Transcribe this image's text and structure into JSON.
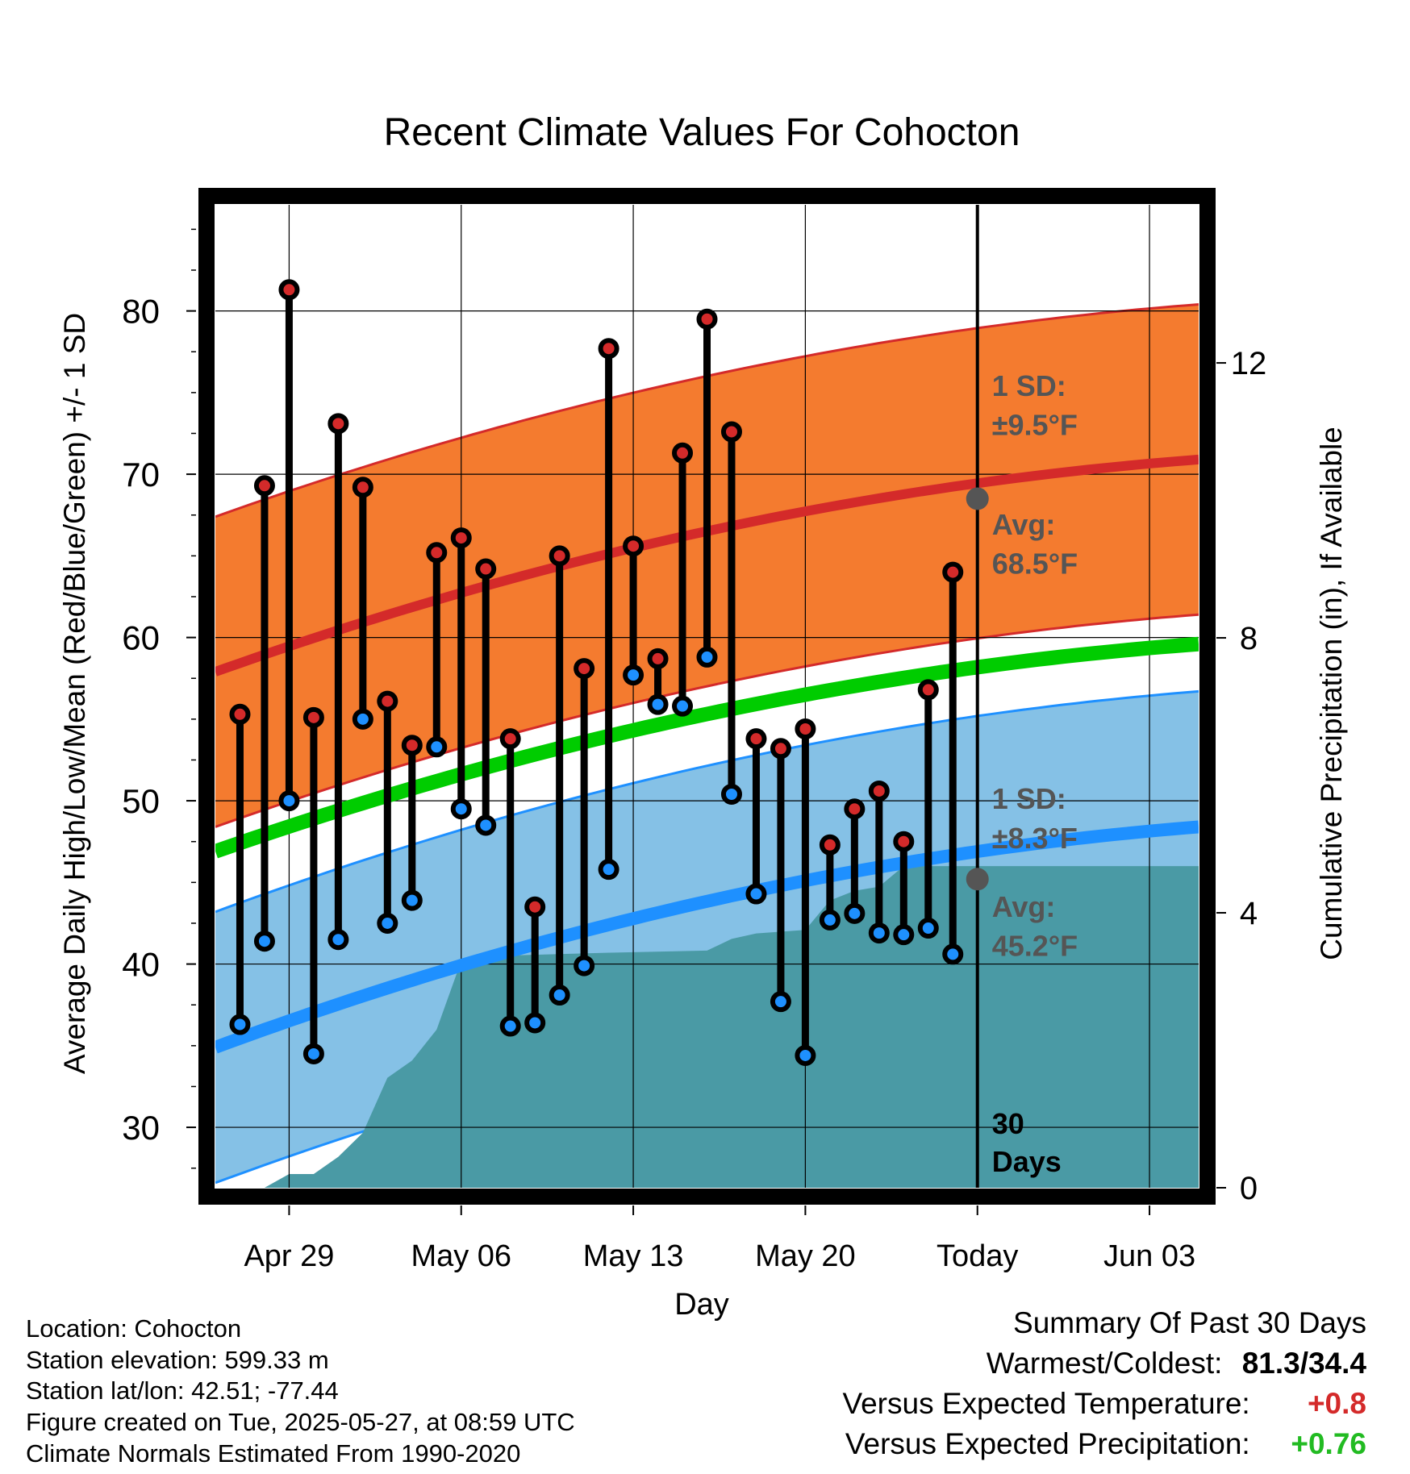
{
  "chart_data": {
    "type": "line",
    "title": "Recent Climate Values For Cohocton",
    "xlabel": "Day",
    "ylabel_left": "Average Daily High/Low/Mean (Red/Blue/Green) +/- 1 SD",
    "ylabel_right": "Cumulative Precipitation (in), If Available",
    "x_tick_labels": [
      "Apr 29",
      "May 06",
      "May 13",
      "May 20",
      "Today",
      "Jun 03"
    ],
    "x_tick_dates": [
      "2025-04-29",
      "2025-05-06",
      "2025-05-13",
      "2025-05-20",
      "2025-05-27",
      "2025-06-03"
    ],
    "x_range": [
      "2025-04-26",
      "2025-06-05"
    ],
    "today": "2025-05-27",
    "ylim": [
      26.3,
      86.5
    ],
    "y_ticks": [
      30,
      40,
      50,
      60,
      70,
      80
    ],
    "precip_ylim": [
      0,
      14.3
    ],
    "precip_ticks": [
      0,
      4,
      8,
      12
    ],
    "grid": true,
    "colors": {
      "high_band": "#f47b2f",
      "high_mean": "#d42a2a",
      "low_band": "#85c1e6",
      "low_mean": "#1e90ff",
      "mean": "#00cc00",
      "precip": "#4a9aa5",
      "high_dot": "#d42a2a",
      "low_dot": "#1e90ff"
    },
    "normals": {
      "high_mean_start": 57.9,
      "high_mean_end": 70.9,
      "high_sd": 9.5,
      "low_mean_start": 34.9,
      "low_mean_end": 48.4,
      "low_sd": 8.3,
      "mean_start": 46.9,
      "mean_end": 59.6
    },
    "daily": [
      {
        "date": "2025-04-27",
        "high": 55.3,
        "low": 36.3
      },
      {
        "date": "2025-04-28",
        "high": 69.3,
        "low": 41.4
      },
      {
        "date": "2025-04-29",
        "high": 81.3,
        "low": 50.0
      },
      {
        "date": "2025-04-30",
        "high": 55.1,
        "low": 34.5
      },
      {
        "date": "2025-05-01",
        "high": 73.1,
        "low": 41.5
      },
      {
        "date": "2025-05-02",
        "high": 69.2,
        "low": 55.0
      },
      {
        "date": "2025-05-03",
        "high": 56.1,
        "low": 42.5
      },
      {
        "date": "2025-05-04",
        "high": 53.4,
        "low": 43.9
      },
      {
        "date": "2025-05-05",
        "high": 65.2,
        "low": 53.3
      },
      {
        "date": "2025-05-06",
        "high": 66.1,
        "low": 49.5
      },
      {
        "date": "2025-05-07",
        "high": 64.2,
        "low": 48.5
      },
      {
        "date": "2025-05-08",
        "high": 53.8,
        "low": 36.2
      },
      {
        "date": "2025-05-09",
        "high": 43.5,
        "low": 36.4
      },
      {
        "date": "2025-05-10",
        "high": 65.0,
        "low": 38.1
      },
      {
        "date": "2025-05-11",
        "high": 58.1,
        "low": 39.9
      },
      {
        "date": "2025-05-12",
        "high": 77.7,
        "low": 45.8
      },
      {
        "date": "2025-05-13",
        "high": 65.6,
        "low": 57.7
      },
      {
        "date": "2025-05-14",
        "high": 58.7,
        "low": 55.9
      },
      {
        "date": "2025-05-15",
        "high": 71.3,
        "low": 55.8
      },
      {
        "date": "2025-05-16",
        "high": 79.5,
        "low": 58.8
      },
      {
        "date": "2025-05-17",
        "high": 72.6,
        "low": 50.4
      },
      {
        "date": "2025-05-18",
        "high": 53.8,
        "low": 44.3
      },
      {
        "date": "2025-05-19",
        "high": 53.2,
        "low": 37.7
      },
      {
        "date": "2025-05-20",
        "high": 54.4,
        "low": 34.4
      },
      {
        "date": "2025-05-21",
        "high": 47.3,
        "low": 42.7
      },
      {
        "date": "2025-05-22",
        "high": 49.5,
        "low": 43.1
      },
      {
        "date": "2025-05-23",
        "high": 50.6,
        "low": 41.9
      },
      {
        "date": "2025-05-24",
        "high": 47.5,
        "low": 41.8
      },
      {
        "date": "2025-05-25",
        "high": 56.8,
        "low": 42.2
      },
      {
        "date": "2025-05-26",
        "high": 64.0,
        "low": 40.6
      }
    ],
    "precip_cumulative": [
      {
        "date": "2025-04-26",
        "value": 0
      },
      {
        "date": "2025-04-28",
        "value": 0
      },
      {
        "date": "2025-04-29",
        "value": 0.2
      },
      {
        "date": "2025-04-30",
        "value": 0.2
      },
      {
        "date": "2025-05-01",
        "value": 0.45
      },
      {
        "date": "2025-05-02",
        "value": 0.8
      },
      {
        "date": "2025-05-03",
        "value": 1.6
      },
      {
        "date": "2025-05-04",
        "value": 1.85
      },
      {
        "date": "2025-05-05",
        "value": 2.3
      },
      {
        "date": "2025-05-06",
        "value": 3.3
      },
      {
        "date": "2025-05-07",
        "value": 3.35
      },
      {
        "date": "2025-05-08",
        "value": 3.38
      },
      {
        "date": "2025-05-12",
        "value": 3.42
      },
      {
        "date": "2025-05-16",
        "value": 3.45
      },
      {
        "date": "2025-05-17",
        "value": 3.62
      },
      {
        "date": "2025-05-18",
        "value": 3.7
      },
      {
        "date": "2025-05-20",
        "value": 3.75
      },
      {
        "date": "2025-05-21",
        "value": 4.18
      },
      {
        "date": "2025-05-22",
        "value": 4.32
      },
      {
        "date": "2025-05-23",
        "value": 4.38
      },
      {
        "date": "2025-05-24",
        "value": 4.68
      },
      {
        "date": "2025-05-26",
        "value": 4.68
      },
      {
        "date": "2025-06-05",
        "value": 4.68
      }
    ],
    "annotations": {
      "high_sd_label": "1 SD:",
      "high_sd_value": "±9.5°F",
      "high_avg_label": "Avg:",
      "high_avg_value": "68.5°F",
      "high_avg_marker": 68.5,
      "low_sd_label": "1 SD:",
      "low_sd_value": "±8.3°F",
      "low_avg_label": "Avg:",
      "low_avg_value": "45.2°F",
      "low_avg_marker": 45.2,
      "days_label_1": "30",
      "days_label_2": "Days"
    }
  },
  "info": {
    "location": "Location: Cohocton",
    "elevation": "Station elevation: 599.33 m",
    "latlon": "Station lat/lon: 42.51; -77.44",
    "created": "Figure created on Tue, 2025-05-27, at 08:59 UTC",
    "normals": "Climate Normals Estimated From 1990-2020"
  },
  "summary": {
    "title": "Summary Of Past 30 Days",
    "warm_cold_label": "Warmest/Coldest:",
    "warm_cold_value": "81.3/34.4",
    "temp_label": "Versus Expected Temperature:",
    "temp_value": "+0.8",
    "temp_color": "#d42a2a",
    "precip_label": "Versus Expected Precipitation:",
    "precip_value": "+0.76",
    "precip_color": "#22bb22"
  }
}
